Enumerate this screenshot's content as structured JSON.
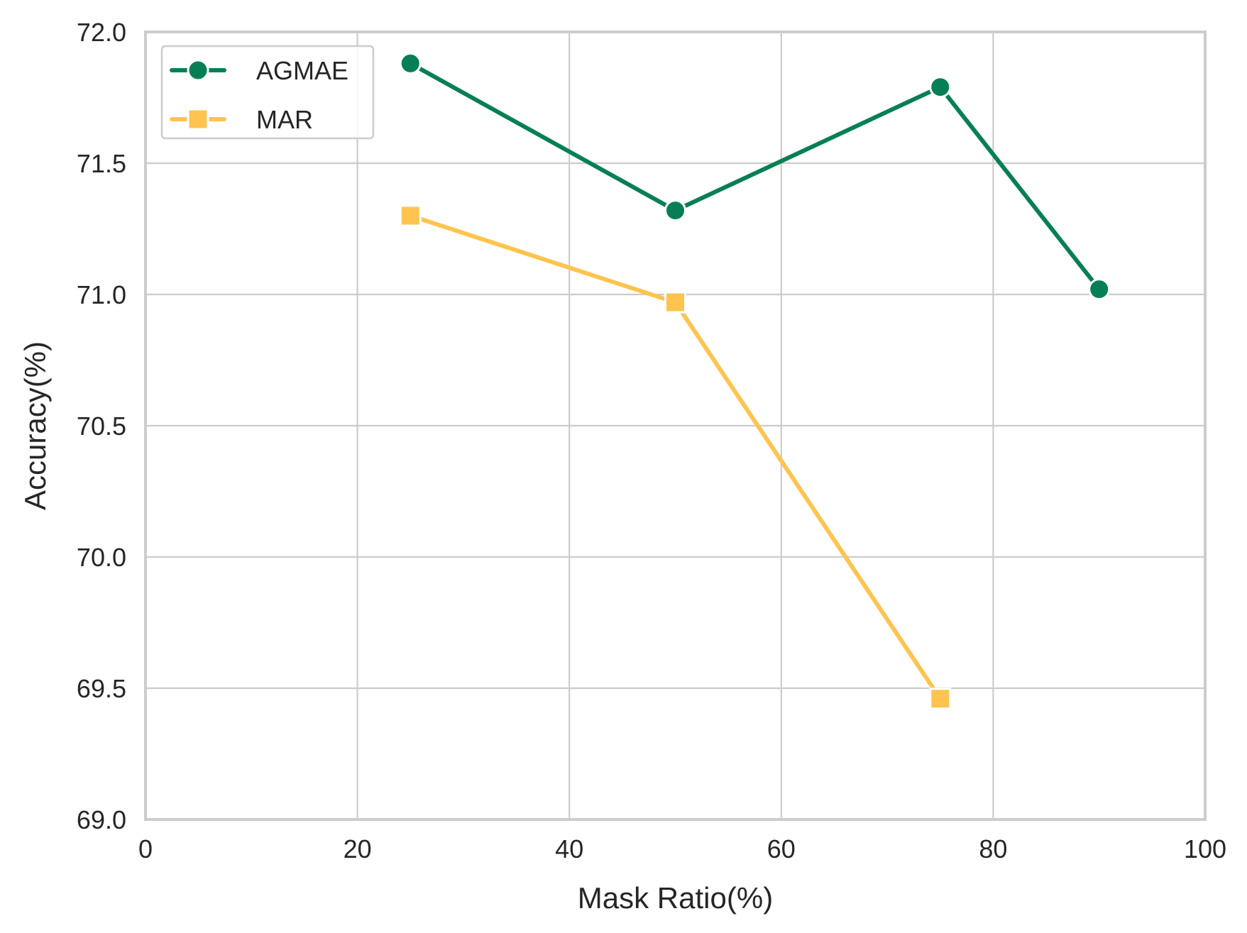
{
  "chart_data": {
    "type": "line",
    "xlabel": "Mask Ratio(%)",
    "ylabel": "Accuracy(%)",
    "xlim": [
      0,
      100
    ],
    "ylim": [
      69.0,
      72.0
    ],
    "xticks": [
      0,
      20,
      40,
      60,
      80,
      100
    ],
    "xtick_labels": [
      "0",
      "20",
      "40",
      "60",
      "80",
      "100"
    ],
    "yticks": [
      69.0,
      69.5,
      70.0,
      70.5,
      71.0,
      71.5,
      72.0
    ],
    "ytick_labels": [
      "69.0",
      "69.5",
      "70.0",
      "70.5",
      "71.0",
      "71.5",
      "72.0"
    ],
    "grid": true,
    "legend_position": "upper-left",
    "series": [
      {
        "name": "AGMAE",
        "marker": "circle",
        "color": "#077f54",
        "x": [
          25,
          50,
          75,
          90
        ],
        "y": [
          71.88,
          71.32,
          71.79,
          71.02
        ]
      },
      {
        "name": "MAR",
        "marker": "square",
        "color": "#fec44f",
        "x": [
          25,
          50,
          75
        ],
        "y": [
          71.3,
          70.97,
          69.46
        ]
      }
    ]
  }
}
